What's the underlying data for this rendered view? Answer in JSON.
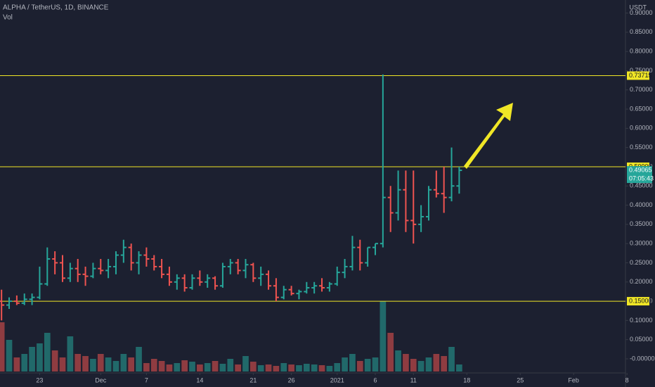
{
  "chart_data": {
    "type": "ohlc",
    "title": "ALPHA / TetherUS, 1D, BINANCE",
    "volume_label": "Vol",
    "currency": "USDT",
    "x": [
      -5,
      -4,
      -3,
      -2,
      -1,
      0,
      1,
      2,
      3,
      4,
      5,
      6,
      7,
      8,
      9,
      10,
      11,
      12,
      13,
      14,
      15,
      16,
      17,
      18,
      19,
      20,
      21,
      22,
      23,
      24,
      25,
      26,
      27,
      28,
      29,
      30,
      31,
      32,
      33,
      34,
      35,
      36,
      37,
      38,
      39,
      40,
      41,
      42,
      43,
      44,
      45,
      46,
      47,
      48,
      49,
      50,
      51,
      52,
      53,
      54,
      55
    ],
    "open": [
      0.15,
      0.14,
      0.15,
      0.145,
      0.155,
      0.16,
      0.195,
      0.26,
      0.25,
      0.21,
      0.235,
      0.22,
      0.215,
      0.235,
      0.23,
      0.24,
      0.27,
      0.29,
      0.25,
      0.27,
      0.26,
      0.24,
      0.22,
      0.2,
      0.21,
      0.185,
      0.21,
      0.2,
      0.21,
      0.19,
      0.24,
      0.25,
      0.23,
      0.245,
      0.21,
      0.22,
      0.19,
      0.16,
      0.18,
      0.17,
      0.175,
      0.185,
      0.19,
      0.185,
      0.195,
      0.225,
      0.24,
      0.29,
      0.25,
      0.29,
      0.3,
      0.42,
      0.38,
      0.44,
      0.36,
      0.35,
      0.37,
      0.44,
      0.43,
      0.42,
      0.45
    ],
    "high": [
      0.18,
      0.16,
      0.165,
      0.17,
      0.17,
      0.24,
      0.29,
      0.28,
      0.27,
      0.25,
      0.26,
      0.24,
      0.25,
      0.26,
      0.26,
      0.28,
      0.31,
      0.3,
      0.28,
      0.29,
      0.27,
      0.26,
      0.24,
      0.22,
      0.22,
      0.22,
      0.23,
      0.22,
      0.215,
      0.25,
      0.26,
      0.26,
      0.26,
      0.25,
      0.24,
      0.23,
      0.21,
      0.19,
      0.19,
      0.18,
      0.2,
      0.2,
      0.21,
      0.2,
      0.24,
      0.26,
      0.32,
      0.31,
      0.29,
      0.3,
      0.74,
      0.45,
      0.49,
      0.49,
      0.49,
      0.4,
      0.45,
      0.49,
      0.5,
      0.55,
      0.5
    ],
    "low": [
      0.1,
      0.13,
      0.14,
      0.14,
      0.14,
      0.155,
      0.19,
      0.22,
      0.2,
      0.2,
      0.2,
      0.19,
      0.21,
      0.22,
      0.21,
      0.22,
      0.25,
      0.23,
      0.22,
      0.24,
      0.23,
      0.21,
      0.19,
      0.18,
      0.175,
      0.18,
      0.19,
      0.185,
      0.18,
      0.185,
      0.22,
      0.22,
      0.21,
      0.2,
      0.19,
      0.18,
      0.15,
      0.155,
      0.165,
      0.155,
      0.17,
      0.17,
      0.175,
      0.175,
      0.19,
      0.21,
      0.23,
      0.23,
      0.24,
      0.27,
      0.29,
      0.33,
      0.36,
      0.33,
      0.3,
      0.33,
      0.36,
      0.42,
      0.38,
      0.41,
      0.43
    ],
    "close": [
      0.14,
      0.15,
      0.145,
      0.155,
      0.16,
      0.195,
      0.26,
      0.25,
      0.21,
      0.235,
      0.22,
      0.215,
      0.235,
      0.23,
      0.24,
      0.27,
      0.29,
      0.25,
      0.27,
      0.26,
      0.24,
      0.22,
      0.2,
      0.21,
      0.185,
      0.21,
      0.2,
      0.21,
      0.19,
      0.24,
      0.25,
      0.23,
      0.245,
      0.21,
      0.22,
      0.19,
      0.16,
      0.18,
      0.17,
      0.175,
      0.185,
      0.19,
      0.185,
      0.195,
      0.225,
      0.24,
      0.29,
      0.25,
      0.29,
      0.3,
      0.42,
      0.38,
      0.44,
      0.36,
      0.35,
      0.37,
      0.44,
      0.43,
      0.42,
      0.45,
      0.49065
    ],
    "volume": [
      70,
      45,
      20,
      25,
      35,
      40,
      55,
      30,
      20,
      50,
      25,
      22,
      18,
      25,
      20,
      15,
      25,
      20,
      35,
      12,
      18,
      15,
      10,
      12,
      16,
      14,
      10,
      12,
      15,
      11,
      18,
      10,
      22,
      14,
      9,
      10,
      8,
      12,
      10,
      9,
      11,
      10,
      9,
      8,
      12,
      20,
      25,
      15,
      18,
      20,
      100,
      55,
      30,
      25,
      18,
      15,
      20,
      25,
      22,
      35,
      10
    ],
    "up_color": "#26a69a",
    "down_color": "#ef5350",
    "level_color": "#f0e626",
    "xlim": [
      -5.2,
      76.8
    ],
    "xticks": [
      {
        "value": 0,
        "label": "23"
      },
      {
        "value": 8,
        "label": "Dec"
      },
      {
        "value": 14,
        "label": "7"
      },
      {
        "value": 21,
        "label": "14"
      },
      {
        "value": 28,
        "label": "21"
      },
      {
        "value": 33,
        "label": "26"
      },
      {
        "value": 39,
        "label": "2021"
      },
      {
        "value": 44,
        "label": "6"
      },
      {
        "value": 49,
        "label": "11"
      },
      {
        "value": 56,
        "label": "18"
      },
      {
        "value": 63,
        "label": "25"
      },
      {
        "value": 70,
        "label": "Feb"
      },
      {
        "value": 77,
        "label": "8"
      }
    ],
    "ylim": [
      -0.033,
      0.934
    ],
    "yticks": [
      {
        "value": 0,
        "label": "-0.00000"
      },
      {
        "value": 0.05,
        "label": "0.05000"
      },
      {
        "value": 0.1,
        "label": "0.10000"
      },
      {
        "value": 0.15,
        "label": "0.15000"
      },
      {
        "value": 0.2,
        "label": "0.20000"
      },
      {
        "value": 0.25,
        "label": "0.25000"
      },
      {
        "value": 0.3,
        "label": "0.30000"
      },
      {
        "value": 0.35,
        "label": "0.35000"
      },
      {
        "value": 0.4,
        "label": "0.40000"
      },
      {
        "value": 0.45,
        "label": "0.45000"
      },
      {
        "value": 0.5,
        "label": "0.50000"
      },
      {
        "value": 0.55,
        "label": "0.55000"
      },
      {
        "value": 0.6,
        "label": "0.60000"
      },
      {
        "value": 0.65,
        "label": "0.65000"
      },
      {
        "value": 0.7,
        "label": "0.70000"
      },
      {
        "value": 0.75,
        "label": "0.75000"
      },
      {
        "value": 0.8,
        "label": "0.80000"
      },
      {
        "value": 0.85,
        "label": "0.85000"
      },
      {
        "value": 0.9,
        "label": "0.90000"
      }
    ],
    "levels": [
      {
        "value": 0.73715,
        "label": "0.73715"
      },
      {
        "value": 0.5,
        "label": "0.50000"
      },
      {
        "value": 0.15,
        "label": "0.15000"
      }
    ],
    "last_price": {
      "value": 0.49065,
      "label": "0.49065"
    },
    "countdown": "07:05:43"
  }
}
